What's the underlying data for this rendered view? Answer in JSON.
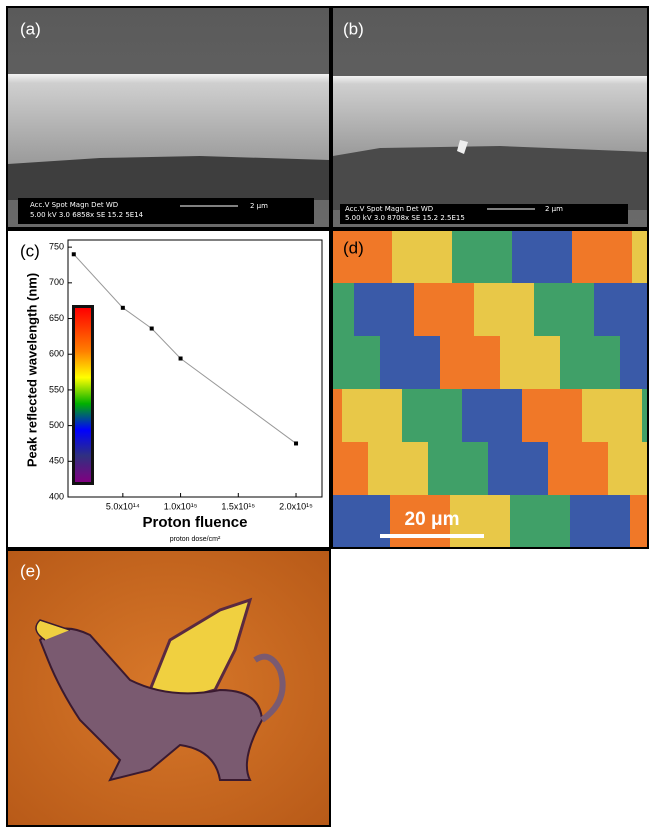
{
  "panels": {
    "a": {
      "label": "(a)",
      "sem_header": "Acc.V  Spot Magn   Det  WD",
      "sem_info": "5.00 kV 3.0   6858x   SE   15.2  5E14",
      "scale": "2 μm"
    },
    "b": {
      "label": "(b)",
      "sem_header": "Acc.V  Spot Magn   Det  WD",
      "sem_info": "5.00 kV 3.0   8708x   SE   15.2  2.5E15",
      "scale": "2 μm"
    },
    "d": {
      "label": "(d)",
      "scale": "20 μm"
    },
    "e": {
      "label": "(e)"
    }
  },
  "chart_data": {
    "type": "line",
    "label": "(c)",
    "x_label": "Proton fluence",
    "x_sublabel": "proton dose/cm²",
    "y_label": "Peak reflected wavelength (nm)",
    "x": [
      75000000000000,
      500000000000000,
      750000000000000,
      1000000000000000,
      2000000000000000
    ],
    "series": [
      {
        "color": "#999999",
        "values": [
          740,
          665,
          636,
          594,
          475
        ]
      }
    ],
    "xlim": [
      25000000000000,
      2225000000000000
    ],
    "ylim": [
      400,
      760
    ],
    "xticks": [
      {
        "value": 500000000000000,
        "label": "5.0x10¹⁴"
      },
      {
        "value": 1000000000000000,
        "label": "1.0x10¹⁵"
      },
      {
        "value": 1500000000000000,
        "label": "1.5x10¹⁵"
      },
      {
        "value": 2000000000000000,
        "label": "2.0x10¹⁵"
      }
    ],
    "yticks": [
      400,
      450,
      500,
      550,
      600,
      650,
      700,
      750
    ]
  }
}
